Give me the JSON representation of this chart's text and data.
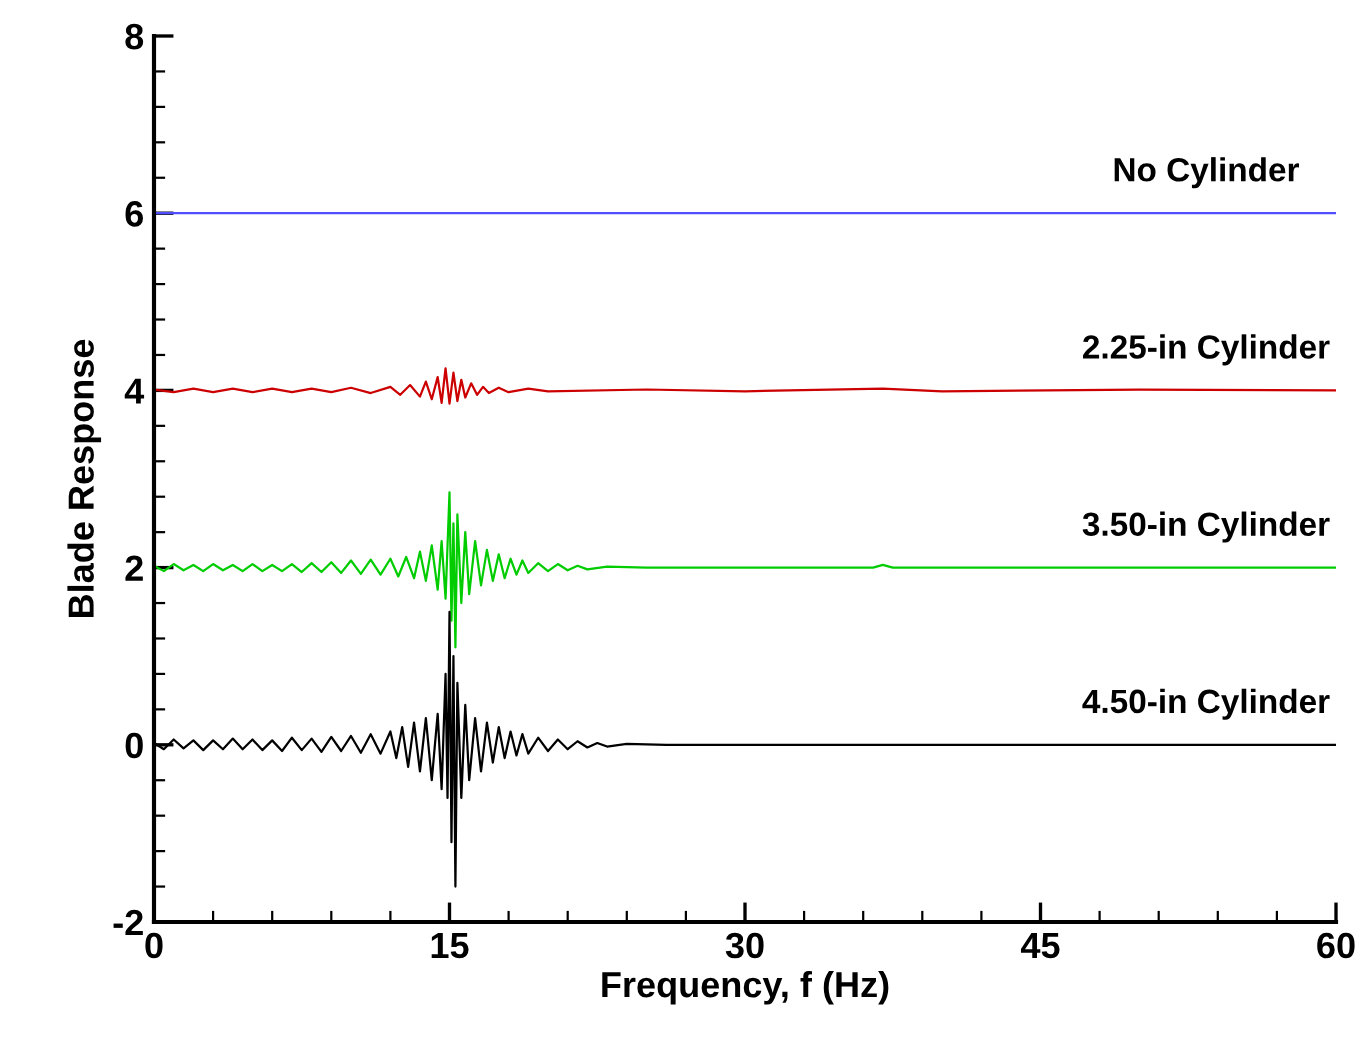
{
  "chart_data": {
    "type": "line",
    "xlabel": "Frequency, f (Hz)",
    "ylabel": "Blade Response",
    "xlim": [
      0,
      60
    ],
    "xticks": [
      0,
      15,
      30,
      45,
      60
    ],
    "ylim": [
      -2,
      8
    ],
    "yticks": [
      {
        "value": -2,
        "label": "-2"
      },
      0,
      2,
      4,
      6,
      8
    ],
    "grid": false,
    "legend": false,
    "marker": "none",
    "line_style": "solid",
    "series": [
      {
        "name": "No Cylinder",
        "color": "#4f4fff",
        "x": [
          0,
          60
        ],
        "values": [
          6,
          6
        ]
      },
      {
        "name": "2.25-in Cylinder",
        "color": "#cc0000",
        "x": [
          0,
          1,
          2,
          3,
          4,
          5,
          6,
          7,
          8,
          9,
          10,
          11,
          12,
          12.5,
          13,
          13.5,
          13.8,
          14.1,
          14.4,
          14.6,
          14.8,
          15.0,
          15.2,
          15.4,
          15.6,
          15.8,
          16.1,
          16.4,
          16.7,
          17,
          17.5,
          18,
          19,
          20,
          25,
          30,
          37,
          40,
          50,
          60
        ],
        "values": [
          4.01,
          3.98,
          4.02,
          3.98,
          4.02,
          3.98,
          4.02,
          3.98,
          4.02,
          3.98,
          4.03,
          3.97,
          4.04,
          3.95,
          4.06,
          3.93,
          4.1,
          3.9,
          4.15,
          3.86,
          4.25,
          3.85,
          4.2,
          3.88,
          4.12,
          3.92,
          4.08,
          3.95,
          4.04,
          3.97,
          4.03,
          3.98,
          4.02,
          3.99,
          4.01,
          3.99,
          4.02,
          3.99,
          4.01,
          4.0
        ]
      },
      {
        "name": "3.50-in Cylinder",
        "color": "#00cc00",
        "x": [
          0,
          0.5,
          1,
          1.5,
          2,
          2.5,
          3,
          3.5,
          4,
          4.5,
          5,
          5.5,
          6,
          6.5,
          7,
          7.5,
          8,
          8.5,
          9,
          9.5,
          10,
          10.5,
          11,
          11.5,
          12,
          12.4,
          12.8,
          13.2,
          13.5,
          13.8,
          14.1,
          14.4,
          14.6,
          14.8,
          15.0,
          15.1,
          15.2,
          15.3,
          15.4,
          15.6,
          15.8,
          16,
          16.3,
          16.6,
          16.9,
          17.2,
          17.5,
          17.8,
          18.1,
          18.4,
          18.7,
          19,
          19.5,
          20,
          20.5,
          21,
          21.5,
          22,
          23,
          25,
          30,
          36.5,
          37,
          37.5,
          45,
          60
        ],
        "values": [
          2.02,
          1.96,
          2.04,
          1.97,
          2.03,
          1.96,
          2.04,
          1.97,
          2.03,
          1.96,
          2.04,
          1.96,
          2.03,
          1.96,
          2.04,
          1.95,
          2.05,
          1.95,
          2.06,
          1.94,
          2.08,
          1.93,
          2.09,
          1.92,
          2.1,
          1.9,
          2.12,
          1.88,
          2.18,
          1.85,
          2.25,
          1.75,
          2.3,
          1.65,
          2.85,
          1.4,
          2.5,
          1.1,
          2.6,
          1.6,
          2.4,
          1.7,
          2.3,
          1.8,
          2.2,
          1.85,
          2.15,
          1.88,
          2.1,
          1.92,
          2.08,
          1.94,
          2.05,
          1.96,
          2.04,
          1.97,
          2.02,
          1.98,
          2.01,
          2.0,
          2.0,
          2.0,
          2.03,
          2.0,
          2.0,
          2.0
        ]
      },
      {
        "name": "4.50-in Cylinder",
        "color": "#000000",
        "x": [
          0,
          0.5,
          1,
          1.5,
          2,
          2.5,
          3,
          3.5,
          4,
          4.5,
          5,
          5.5,
          6,
          6.5,
          7,
          7.5,
          8,
          8.5,
          9,
          9.5,
          10,
          10.5,
          11,
          11.5,
          12,
          12.3,
          12.6,
          12.9,
          13.2,
          13.5,
          13.8,
          14.1,
          14.4,
          14.6,
          14.8,
          14.9,
          15.0,
          15.1,
          15.2,
          15.3,
          15.4,
          15.6,
          15.8,
          16.0,
          16.3,
          16.6,
          16.9,
          17.2,
          17.5,
          17.8,
          18.1,
          18.4,
          18.7,
          19,
          19.5,
          20,
          20.5,
          21,
          21.5,
          22,
          22.5,
          23,
          24,
          26,
          30,
          40,
          50,
          60
        ],
        "values": [
          0.02,
          -0.05,
          0.06,
          -0.04,
          0.05,
          -0.06,
          0.05,
          -0.05,
          0.07,
          -0.05,
          0.06,
          -0.06,
          0.05,
          -0.07,
          0.08,
          -0.06,
          0.07,
          -0.08,
          0.09,
          -0.07,
          0.1,
          -0.09,
          0.12,
          -0.1,
          0.15,
          -0.15,
          0.2,
          -0.25,
          0.25,
          -0.3,
          0.3,
          -0.4,
          0.35,
          -0.5,
          0.8,
          -0.6,
          1.5,
          -1.1,
          1.0,
          -1.6,
          0.7,
          -0.6,
          0.45,
          -0.4,
          0.3,
          -0.3,
          0.25,
          -0.2,
          0.2,
          -0.15,
          0.15,
          -0.12,
          0.12,
          -0.1,
          0.08,
          -0.07,
          0.06,
          -0.05,
          0.04,
          -0.03,
          0.02,
          -0.02,
          0.01,
          0,
          0,
          0,
          0,
          0
        ]
      }
    ]
  }
}
